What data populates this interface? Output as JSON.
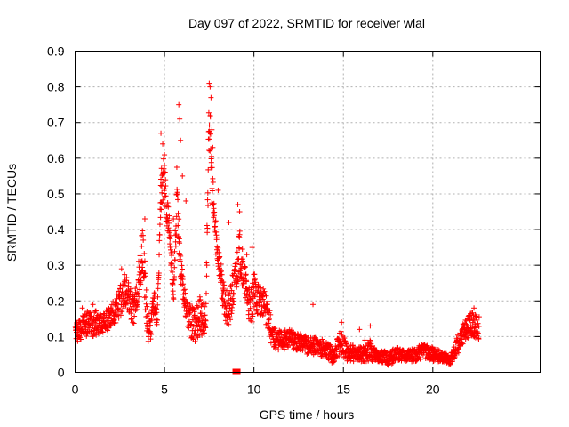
{
  "chart_data": {
    "type": "scatter",
    "title": "Day 097 of 2022, SRMTID for receiver wlal",
    "xlabel": "GPS time / hours",
    "ylabel": "SRMTID / TECUs",
    "xlim": [
      0,
      26
    ],
    "ylim": [
      0,
      0.9
    ],
    "x_ticks": [
      0,
      5,
      10,
      15,
      20
    ],
    "y_ticks": [
      0,
      0.1,
      0.2,
      0.3,
      0.4,
      0.5,
      0.6,
      0.7,
      0.8,
      0.9
    ],
    "x_tick_labels": [
      "0",
      "5",
      "10",
      "15",
      "20"
    ],
    "y_tick_labels": [
      "0",
      "0.1",
      "0.2",
      "0.3",
      "0.4",
      "0.5",
      "0.6",
      "0.7",
      "0.8",
      "0.9"
    ],
    "grid": true,
    "marker": "plus",
    "color": "#ff0000",
    "series": [
      {
        "name": "SRMTID",
        "envelope": [
          [
            0.0,
            0.08,
            0.14
          ],
          [
            0.3,
            0.09,
            0.16
          ],
          [
            0.6,
            0.1,
            0.17
          ],
          [
            1.0,
            0.1,
            0.18
          ],
          [
            1.5,
            0.11,
            0.16
          ],
          [
            2.0,
            0.12,
            0.19
          ],
          [
            2.5,
            0.15,
            0.24
          ],
          [
            2.8,
            0.18,
            0.28
          ],
          [
            3.0,
            0.16,
            0.25
          ],
          [
            3.3,
            0.13,
            0.21
          ],
          [
            3.6,
            0.2,
            0.33
          ],
          [
            3.8,
            0.25,
            0.43
          ],
          [
            4.0,
            0.1,
            0.22
          ],
          [
            4.2,
            0.06,
            0.15
          ],
          [
            4.4,
            0.17,
            0.24
          ],
          [
            4.6,
            0.12,
            0.17
          ],
          [
            4.8,
            0.45,
            0.57
          ],
          [
            5.0,
            0.5,
            0.62
          ],
          [
            5.1,
            0.4,
            0.5
          ],
          [
            5.3,
            0.35,
            0.44
          ],
          [
            5.5,
            0.16,
            0.22
          ],
          [
            5.7,
            0.45,
            0.6
          ],
          [
            5.9,
            0.25,
            0.33
          ],
          [
            6.1,
            0.18,
            0.24
          ],
          [
            6.3,
            0.12,
            0.2
          ],
          [
            6.6,
            0.08,
            0.18
          ],
          [
            7.0,
            0.1,
            0.22
          ],
          [
            7.3,
            0.1,
            0.18
          ],
          [
            7.5,
            0.65,
            0.8
          ],
          [
            7.7,
            0.4,
            0.55
          ],
          [
            7.9,
            0.32,
            0.42
          ],
          [
            8.1,
            0.25,
            0.33
          ],
          [
            8.3,
            0.16,
            0.25
          ],
          [
            8.6,
            0.12,
            0.22
          ],
          [
            8.9,
            0.18,
            0.3
          ],
          [
            9.2,
            0.28,
            0.4
          ],
          [
            9.5,
            0.2,
            0.3
          ],
          [
            9.8,
            0.12,
            0.22
          ],
          [
            10.0,
            0.16,
            0.28
          ],
          [
            10.4,
            0.16,
            0.24
          ],
          [
            10.8,
            0.12,
            0.22
          ],
          [
            11.0,
            0.07,
            0.13
          ],
          [
            11.5,
            0.06,
            0.12
          ],
          [
            12.0,
            0.07,
            0.12
          ],
          [
            12.5,
            0.06,
            0.11
          ],
          [
            13.0,
            0.05,
            0.1
          ],
          [
            13.5,
            0.05,
            0.1
          ],
          [
            14.0,
            0.04,
            0.09
          ],
          [
            14.5,
            0.02,
            0.07
          ],
          [
            14.8,
            0.05,
            0.13
          ],
          [
            15.2,
            0.03,
            0.08
          ],
          [
            16.0,
            0.03,
            0.07
          ],
          [
            16.5,
            0.03,
            0.09
          ],
          [
            17.0,
            0.03,
            0.06
          ],
          [
            17.5,
            0.02,
            0.06
          ],
          [
            18.0,
            0.03,
            0.07
          ],
          [
            18.5,
            0.03,
            0.06
          ],
          [
            19.0,
            0.03,
            0.07
          ],
          [
            19.5,
            0.04,
            0.08
          ],
          [
            20.0,
            0.03,
            0.07
          ],
          [
            20.5,
            0.03,
            0.06
          ],
          [
            21.0,
            0.02,
            0.05
          ],
          [
            21.4,
            0.05,
            0.11
          ],
          [
            21.8,
            0.09,
            0.15
          ],
          [
            22.2,
            0.1,
            0.17
          ],
          [
            22.6,
            0.09,
            0.16
          ]
        ],
        "spikes": [
          [
            0.4,
            0.18
          ],
          [
            1.0,
            0.19
          ],
          [
            2.6,
            0.29
          ],
          [
            3.9,
            0.43
          ],
          [
            4.8,
            0.67
          ],
          [
            4.9,
            0.64
          ],
          [
            5.0,
            0.58
          ],
          [
            5.5,
            0.43
          ],
          [
            5.8,
            0.75
          ],
          [
            5.85,
            0.71
          ],
          [
            5.9,
            0.65
          ],
          [
            6.0,
            0.55
          ],
          [
            6.2,
            0.48
          ],
          [
            7.5,
            0.81
          ],
          [
            7.55,
            0.8
          ],
          [
            7.6,
            0.77
          ],
          [
            7.65,
            0.68
          ],
          [
            7.7,
            0.63
          ],
          [
            8.0,
            0.51
          ],
          [
            8.6,
            0.42
          ],
          [
            9.1,
            0.47
          ],
          [
            9.2,
            0.45
          ],
          [
            9.6,
            0.33
          ],
          [
            9.9,
            0.35
          ],
          [
            13.3,
            0.19
          ],
          [
            14.9,
            0.14
          ],
          [
            15.9,
            0.12
          ],
          [
            16.2,
            0.09
          ],
          [
            16.5,
            0.13
          ],
          [
            22.3,
            0.18
          ]
        ],
        "zero_points": [
          [
            8.95,
            0.0
          ],
          [
            9.1,
            0.0
          ]
        ]
      }
    ]
  }
}
